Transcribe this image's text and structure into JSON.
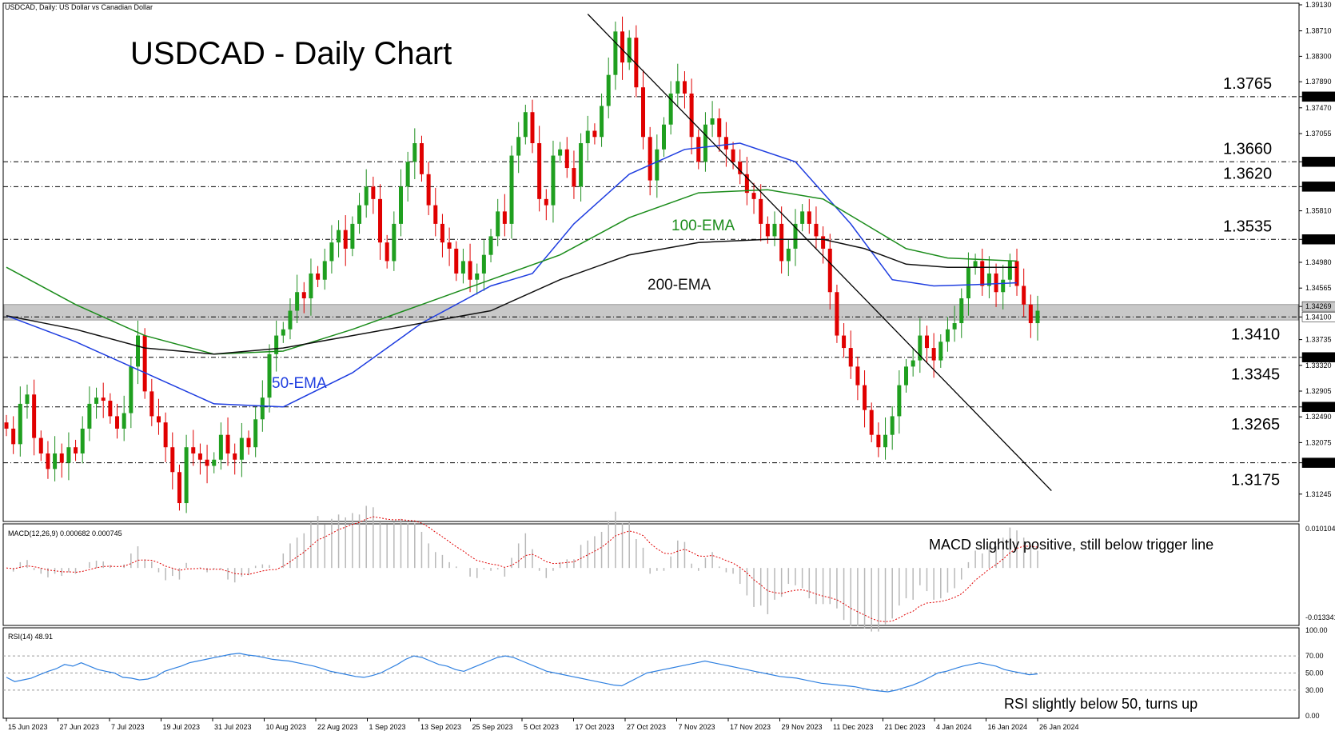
{
  "header": "USDCAD, Daily:  US Dollar vs Canadian Dollar",
  "chart_data": [
    {
      "type": "candlestick",
      "title": "USDCAD - Daily Chart",
      "ylim": [
        1.3083,
        1.3913
      ],
      "price_ticks": [
        "1.39130",
        "1.38710",
        "1.38300",
        "1.37890",
        "1.37650",
        "1.37470",
        "1.37055",
        "1.36600",
        "1.36200",
        "1.35810",
        "1.35350",
        "1.34980",
        "1.34565",
        "1.34269",
        "1.34100",
        "1.33735",
        "1.33450",
        "1.33320",
        "1.32905",
        "1.32650",
        "1.32490",
        "1.32075",
        "1.31750",
        "1.31245"
      ],
      "highlighted_ticks": [
        "1.37650",
        "1.36600",
        "1.36200",
        "1.35350",
        "1.34269",
        "1.34100",
        "1.33450",
        "1.32650",
        "1.31750"
      ],
      "date_labels": [
        "15 Jun 2023",
        "27 Jun 2023",
        "7 Jul 2023",
        "19 Jul 2023",
        "31 Jul 2023",
        "10 Aug 2023",
        "22 Aug 2023",
        "1 Sep 2023",
        "13 Sep 2023",
        "25 Sep 2023",
        "5 Oct 2023",
        "17 Oct 2023",
        "27 Oct 2023",
        "7 Nov 2023",
        "17 Nov 2023",
        "29 Nov 2023",
        "11 Dec 2023",
        "21 Dec 2023",
        "4 Jan 2024",
        "16 Jan 2024",
        "26 Jan 2024"
      ],
      "levels": [
        {
          "value": 1.3765,
          "label": "1.3765"
        },
        {
          "value": 1.366,
          "label": "1.3660"
        },
        {
          "value": 1.362,
          "label": "1.3620"
        },
        {
          "value": 1.3535,
          "label": "1.3535"
        },
        {
          "value": 1.341,
          "label": "1.3410"
        },
        {
          "value": 1.3345,
          "label": "1.3345"
        },
        {
          "value": 1.3265,
          "label": "1.3265"
        },
        {
          "value": 1.3175,
          "label": "1.3175"
        }
      ],
      "support_zone": [
        1.3405,
        1.343
      ],
      "closes": [
        1.323,
        1.3205,
        1.327,
        1.3285,
        1.3215,
        1.319,
        1.3165,
        1.319,
        1.3175,
        1.32,
        1.319,
        1.323,
        1.327,
        1.328,
        1.3275,
        1.325,
        1.323,
        1.3255,
        1.333,
        1.338,
        1.329,
        1.325,
        1.324,
        1.32,
        1.316,
        1.311,
        1.32,
        1.319,
        1.318,
        1.317,
        1.318,
        1.322,
        1.319,
        1.318,
        1.3215,
        1.32,
        1.3245,
        1.328,
        1.335,
        1.338,
        1.339,
        1.342,
        1.345,
        1.344,
        1.348,
        1.347,
        1.35,
        1.353,
        1.355,
        1.352,
        1.356,
        1.359,
        1.362,
        1.36,
        1.353,
        1.35,
        1.356,
        1.362,
        1.366,
        1.369,
        1.364,
        1.359,
        1.356,
        1.353,
        1.352,
        1.348,
        1.35,
        1.347,
        1.348,
        1.351,
        1.354,
        1.358,
        1.356,
        1.367,
        1.37,
        1.374,
        1.369,
        1.36,
        1.359,
        1.367,
        1.368,
        1.365,
        1.362,
        1.369,
        1.371,
        1.37,
        1.375,
        1.38,
        1.387,
        1.382,
        1.386,
        1.378,
        1.37,
        1.363,
        1.368,
        1.372,
        1.377,
        1.379,
        1.377,
        1.37,
        1.366,
        1.372,
        1.373,
        1.37,
        1.368,
        1.366,
        1.364,
        1.361,
        1.36,
        1.356,
        1.354,
        1.356,
        1.35,
        1.352,
        1.356,
        1.358,
        1.356,
        1.354,
        1.352,
        1.345,
        1.338,
        1.336,
        1.333,
        1.33,
        1.326,
        1.322,
        1.32,
        1.322,
        1.325,
        1.33,
        1.333,
        1.334,
        1.338,
        1.336,
        1.334,
        1.337,
        1.339,
        1.34,
        1.344,
        1.349,
        1.35,
        1.346,
        1.348,
        1.345,
        1.347,
        1.35,
        1.346,
        1.343,
        1.34,
        1.342
      ],
      "ema_series": [
        {
          "name": "50-EMA",
          "label": "50-EMA",
          "color": "#1f3ee0",
          "points": [
            [
              0,
              1.3412
            ],
            [
              10,
              1.337
            ],
            [
              20,
              1.332
            ],
            [
              30,
              1.327
            ],
            [
              40,
              1.3265
            ],
            [
              50,
              1.332
            ],
            [
              60,
              1.34
            ],
            [
              70,
              1.346
            ],
            [
              76,
              1.348
            ],
            [
              82,
              1.356
            ],
            [
              90,
              1.364
            ],
            [
              98,
              1.368
            ],
            [
              106,
              1.369
            ],
            [
              114,
              1.366
            ],
            [
              122,
              1.356
            ],
            [
              128,
              1.347
            ],
            [
              134,
              1.346
            ],
            [
              140,
              1.3462
            ],
            [
              146,
              1.3465
            ]
          ]
        },
        {
          "name": "100-EMA",
          "label": "100-EMA",
          "color": "#1b8c1b",
          "points": [
            [
              0,
              1.349
            ],
            [
              10,
              1.343
            ],
            [
              20,
              1.338
            ],
            [
              30,
              1.335
            ],
            [
              40,
              1.3355
            ],
            [
              50,
              1.339
            ],
            [
              60,
              1.343
            ],
            [
              70,
              1.347
            ],
            [
              80,
              1.351
            ],
            [
              90,
              1.357
            ],
            [
              100,
              1.361
            ],
            [
              110,
              1.3615
            ],
            [
              118,
              1.36
            ],
            [
              124,
              1.356
            ],
            [
              130,
              1.352
            ],
            [
              136,
              1.3505
            ],
            [
              146,
              1.35
            ]
          ]
        },
        {
          "name": "200-EMA",
          "label": "200-EMA",
          "color": "#111111",
          "points": [
            [
              0,
              1.3412
            ],
            [
              10,
              1.339
            ],
            [
              20,
              1.336
            ],
            [
              30,
              1.335
            ],
            [
              40,
              1.336
            ],
            [
              50,
              1.338
            ],
            [
              60,
              1.34
            ],
            [
              70,
              1.342
            ],
            [
              80,
              1.347
            ],
            [
              90,
              1.351
            ],
            [
              100,
              1.353
            ],
            [
              110,
              1.3535
            ],
            [
              118,
              1.3535
            ],
            [
              124,
              1.352
            ],
            [
              130,
              1.3495
            ],
            [
              136,
              1.349
            ],
            [
              146,
              1.349
            ]
          ]
        }
      ],
      "trendline": [
        [
          84,
          1.3898
        ],
        [
          151,
          1.313
        ]
      ]
    },
    {
      "type": "bar",
      "title": "MACD(12,26,9) 0.000682 0.000745",
      "ylim": [
        -0.013341,
        0.010104
      ],
      "tick_labels": [
        "0.010104",
        "-0.013341"
      ],
      "annotation": "MACD slightly positive, still below trigger line"
    },
    {
      "type": "line",
      "title": "RSI(14) 48.91",
      "ylim": [
        0,
        100
      ],
      "tick_labels": [
        "100.00",
        "70.00",
        "50.00",
        "30.00",
        "0.00"
      ],
      "annotation": "RSI slightly below 50, turns up",
      "values": [
        45,
        40,
        42,
        44,
        48,
        52,
        55,
        60,
        58,
        62,
        58,
        54,
        52,
        50,
        45,
        44,
        42,
        43,
        46,
        52,
        55,
        58,
        62,
        64,
        66,
        68,
        70,
        72,
        73,
        71,
        70,
        68,
        66,
        65,
        64,
        62,
        60,
        58,
        55,
        52,
        50,
        48,
        46,
        45,
        47,
        50,
        55,
        60,
        66,
        70,
        68,
        64,
        60,
        58,
        54,
        52,
        56,
        60,
        64,
        68,
        70,
        68,
        64,
        60,
        56,
        52,
        50,
        48,
        46,
        44,
        42,
        40,
        38,
        36,
        35,
        40,
        45,
        50,
        52,
        54,
        56,
        58,
        60,
        62,
        64,
        62,
        60,
        58,
        56,
        54,
        52,
        50,
        48,
        46,
        45,
        44,
        42,
        40,
        38,
        37,
        36,
        35,
        34,
        32,
        30,
        29,
        28,
        30,
        33,
        36,
        40,
        45,
        50,
        52,
        55,
        58,
        60,
        62,
        60,
        58,
        54,
        52,
        50,
        48,
        49
      ]
    }
  ]
}
